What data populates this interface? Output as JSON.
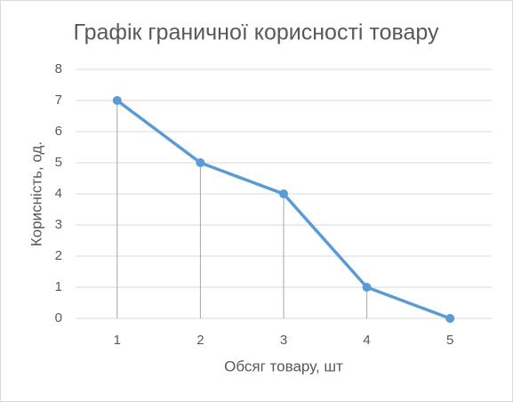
{
  "chart_data": {
    "type": "line",
    "title": "Графік граничної корисності товару",
    "x_label": "Обсяг товару, шт",
    "y_label": "Корисність, од.",
    "categories": [
      "1",
      "2",
      "3",
      "4",
      "5"
    ],
    "series": [
      {
        "name": "Корисність",
        "color": "#5b9bd5",
        "values": [
          7,
          5,
          4,
          1,
          0
        ]
      }
    ],
    "ylim": [
      0,
      8
    ],
    "yticks": [
      0,
      1,
      2,
      3,
      4,
      5,
      6,
      7,
      8
    ],
    "grid": true,
    "drop_lines": true,
    "legend": false
  }
}
